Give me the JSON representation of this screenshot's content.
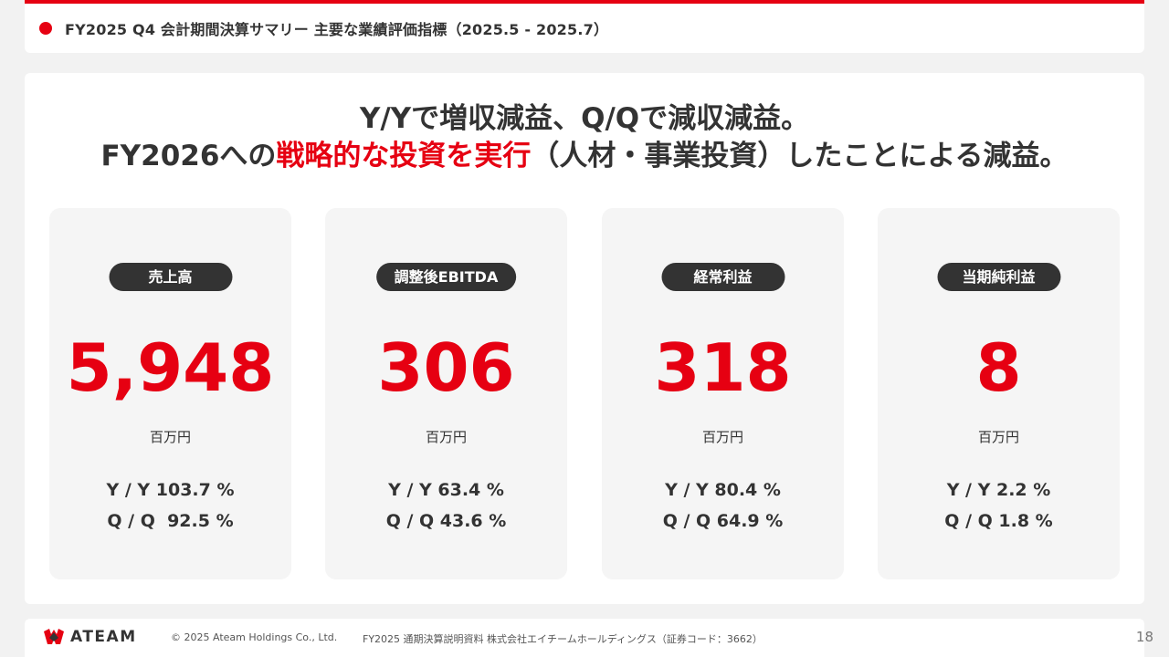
{
  "header": {
    "title": "FY2025 Q4 会計期間決算サマリー 主要な業績評価指標（2025.5 - 2025.7）"
  },
  "headline": {
    "line1": "Y/Yで増収減益、Q/Qで減収減益。",
    "line2_prefix": "FY2026への",
    "line2_highlight": "戦略的な投資を実行",
    "line2_suffix": "（人材・事業投資）したことによる減益。"
  },
  "kpis": [
    {
      "label": "売上高",
      "value": "5,948",
      "unit": "百万円",
      "yy": "Y / Y 103.7 %",
      "qq": "Q / Q  92.5 %"
    },
    {
      "label": "調整後EBITDA",
      "value": "306",
      "unit": "百万円",
      "yy": "Y / Y 63.4 %",
      "qq": "Q / Q 43.6 %"
    },
    {
      "label": "経常利益",
      "value": "318",
      "unit": "百万円",
      "yy": "Y / Y 80.4 %",
      "qq": "Q / Q 64.9 %"
    },
    {
      "label": "当期純利益",
      "value": "8",
      "unit": "百万円",
      "yy": "Y / Y 2.2 %",
      "qq": "Q / Q 1.8 %"
    }
  ],
  "footer": {
    "logo_text": "ATEAM",
    "copyright": "© 2025 Ateam Holdings Co., Ltd.",
    "document": "FY2025 通期決算説明資料 株式会社エイチームホールディングス（証券コード：3662）",
    "page_number": "18"
  },
  "colors": {
    "accent": "#e60012",
    "text": "#333333",
    "card_bg": "#f5f5f5"
  }
}
